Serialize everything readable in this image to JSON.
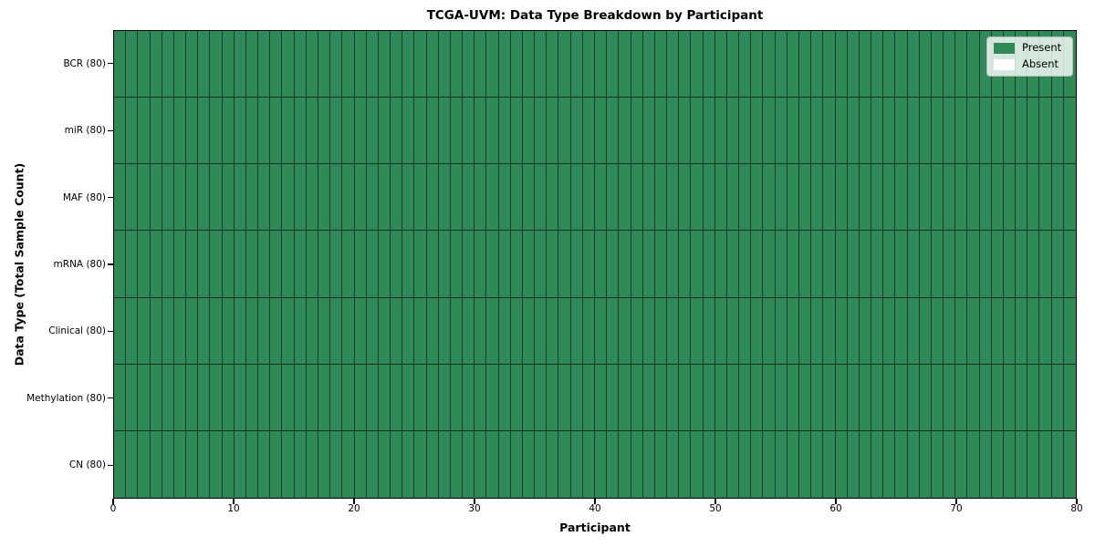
{
  "title": "TCGA-UVM: Data Type Breakdown by Participant",
  "chart_data": {
    "type": "heatmap",
    "title": "TCGA-UVM: Data Type Breakdown by Participant",
    "xlabel": "Participant",
    "ylabel": "Data Type (Total Sample Count)",
    "xlim": [
      0,
      80
    ],
    "x_ticks": [
      0,
      10,
      20,
      30,
      40,
      50,
      60,
      70,
      80
    ],
    "n_participants": 80,
    "grid": false,
    "legend_position": "upper right",
    "rows": [
      {
        "label": "BCR (80)",
        "data_type": "BCR",
        "total_sample_count": 80,
        "present_count": 80,
        "absent_count": 0
      },
      {
        "label": "miR (80)",
        "data_type": "miR",
        "total_sample_count": 80,
        "present_count": 80,
        "absent_count": 0
      },
      {
        "label": "MAF (80)",
        "data_type": "MAF",
        "total_sample_count": 80,
        "present_count": 80,
        "absent_count": 0
      },
      {
        "label": "mRNA (80)",
        "data_type": "mRNA",
        "total_sample_count": 80,
        "present_count": 80,
        "absent_count": 0
      },
      {
        "label": "Clinical (80)",
        "data_type": "Clinical",
        "total_sample_count": 80,
        "present_count": 80,
        "absent_count": 0
      },
      {
        "label": "Methylation (80)",
        "data_type": "Methylation",
        "total_sample_count": 80,
        "present_count": 80,
        "absent_count": 0
      },
      {
        "label": "CN (80)",
        "data_type": "CN",
        "total_sample_count": 80,
        "present_count": 80,
        "absent_count": 0
      }
    ],
    "legend": [
      {
        "label": "Present",
        "color": "#2e8b57"
      },
      {
        "label": "Absent",
        "color": "#ffffff"
      }
    ],
    "colors": {
      "present": "#2e8b57",
      "absent": "#ffffff",
      "cell_edge": "rgba(0,0,0,0.55)",
      "frame": "#000000",
      "legend_background": "rgba(255,255,255,0.8)"
    }
  }
}
